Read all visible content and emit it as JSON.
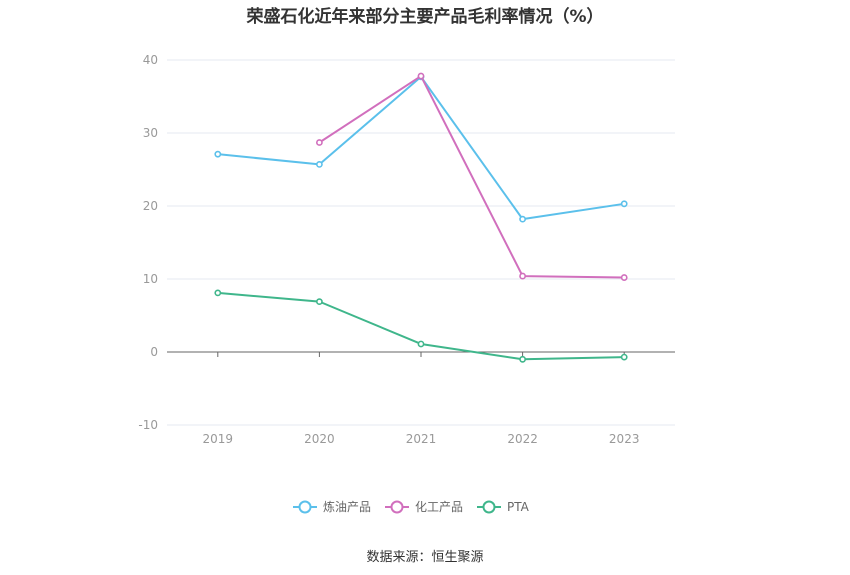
{
  "chart_data": {
    "type": "line",
    "title": "荣盛石化近年来部分主要产品毛利率情况（%）",
    "categories": [
      "2019",
      "2020",
      "2021",
      "2022",
      "2023"
    ],
    "ylim": [
      -10,
      40
    ],
    "yticks": [
      -10,
      0,
      10,
      20,
      30,
      40
    ],
    "grid": true,
    "legend_position": "bottom",
    "series": [
      {
        "name": "炼油产品",
        "color": "#5bc0eb",
        "values": [
          27.1,
          25.7,
          37.7,
          18.2,
          20.3
        ]
      },
      {
        "name": "化工产品",
        "color": "#d16fbd",
        "values": [
          null,
          28.7,
          37.8,
          10.4,
          10.2
        ]
      },
      {
        "name": "PTA",
        "color": "#3fb68b",
        "values": [
          8.1,
          6.9,
          1.1,
          -1.0,
          -0.7
        ]
      }
    ]
  },
  "source": "数据来源：恒生聚源"
}
